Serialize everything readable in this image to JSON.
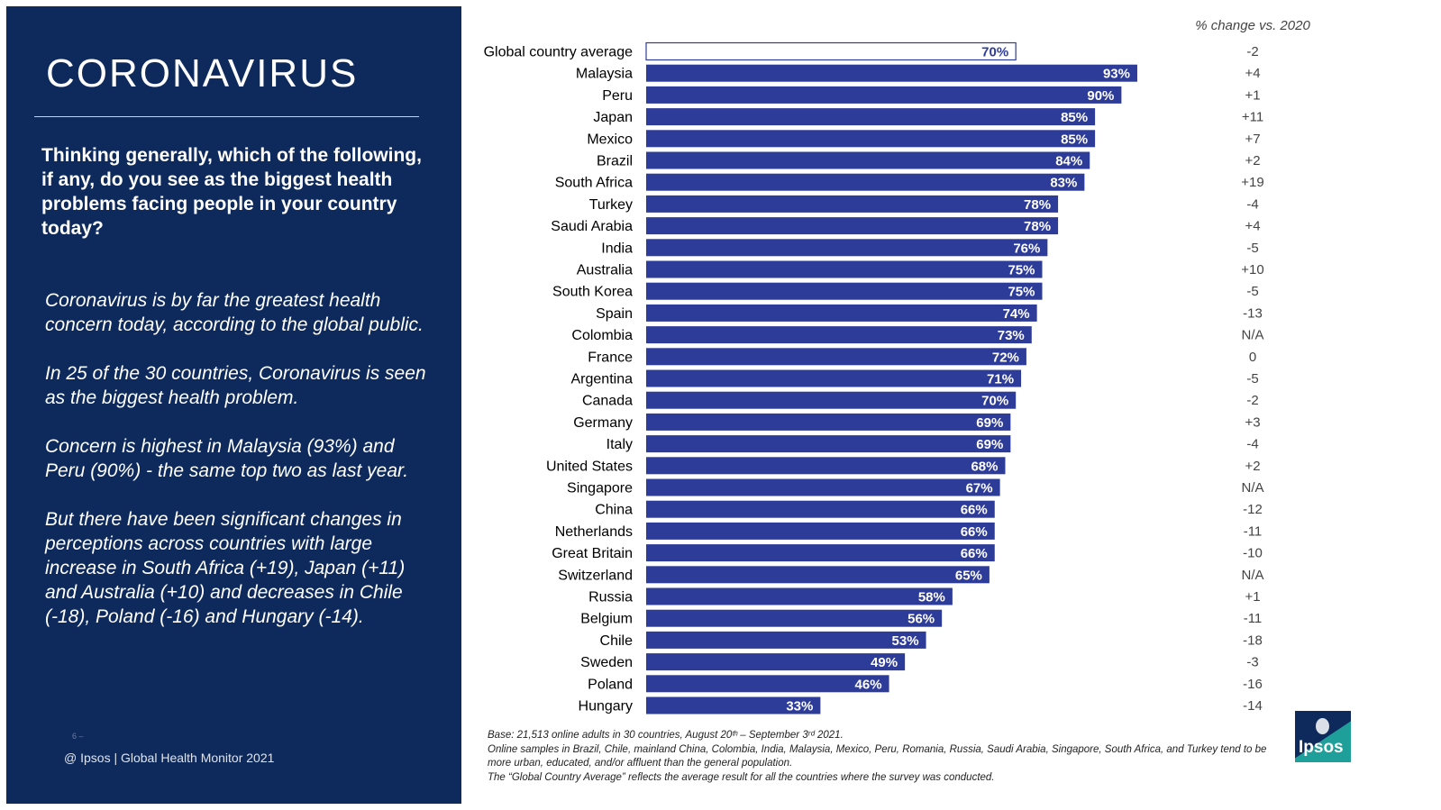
{
  "left": {
    "title": "CORONAVIRUS",
    "question": "Thinking generally, which of the following, if any, do you see as the biggest health problems facing people in your country today?",
    "paragraphs": [
      "Coronavirus is by far the greatest health concern today, according to the global public.",
      "In 25 of the 30 countries, Coronavirus is seen as the biggest health problem.",
      "Concern is highest in Malaysia (93%) and Peru (90%) - the same top two as last year.",
      "But there have been significant changes in perceptions across countries with large increase in South Africa (+19), Japan (+11) and Australia (+10) and decreases in Chile (-18), Poland (-16) and Hungary (-14)."
    ],
    "page_number": "6 –",
    "footer": "@ Ipsos | Global Health Monitor 2021"
  },
  "notes": {
    "line1": "Base: 21,513 online adults in 30 countries, August 20ᵗʰ – September 3ʳᵈ 2021.",
    "line2": "Online samples in Brazil, Chile, mainland China, Colombia, India, Malaysia, Mexico, Peru, Romania, Russia, Saudi Arabia, Singapore, South Africa, and Turkey tend to be more urban, educated, and/or affluent than the general population.",
    "line3": "The “Global Country Average” reflects the average result for all the countries where the survey was conducted."
  },
  "logo": {
    "text": "Ipsos"
  },
  "colors": {
    "bar": "#2e3c99",
    "panel": "#0e2a5c",
    "highlight_border": "#2e3c99"
  },
  "chart_data": {
    "type": "bar",
    "orientation": "horizontal",
    "change_header": "% change vs. 2020",
    "value_suffix": "%",
    "xlim": [
      0,
      100
    ],
    "categories": [
      "Global country average",
      "Malaysia",
      "Peru",
      "Japan",
      "Mexico",
      "Brazil",
      "South Africa",
      "Turkey",
      "Saudi Arabia",
      "India",
      "Australia",
      "South Korea",
      "Spain",
      "Colombia",
      "France",
      "Argentina",
      "Canada",
      "Germany",
      "Italy",
      "United States",
      "Singapore",
      "China",
      "Netherlands",
      "Great Britain",
      "Switzerland",
      "Russia",
      "Belgium",
      "Chile",
      "Sweden",
      "Poland",
      "Hungary"
    ],
    "values": [
      70,
      93,
      90,
      85,
      85,
      84,
      83,
      78,
      78,
      76,
      75,
      75,
      74,
      73,
      72,
      71,
      70,
      69,
      69,
      68,
      67,
      66,
      66,
      66,
      65,
      58,
      56,
      53,
      49,
      46,
      33
    ],
    "changes": [
      "-2",
      "+4",
      "+1",
      "+11",
      "+7",
      "+2",
      "+19",
      "-4",
      "+4",
      "-5",
      "+10",
      "-5",
      "-13",
      "N/A",
      "0",
      "-5",
      "-2",
      "+3",
      "-4",
      "+2",
      "N/A",
      "-12",
      "-11",
      "-10",
      "N/A",
      "+1",
      "-11",
      "-18",
      "-3",
      "-16",
      "-14"
    ],
    "highlight_index": 0
  }
}
